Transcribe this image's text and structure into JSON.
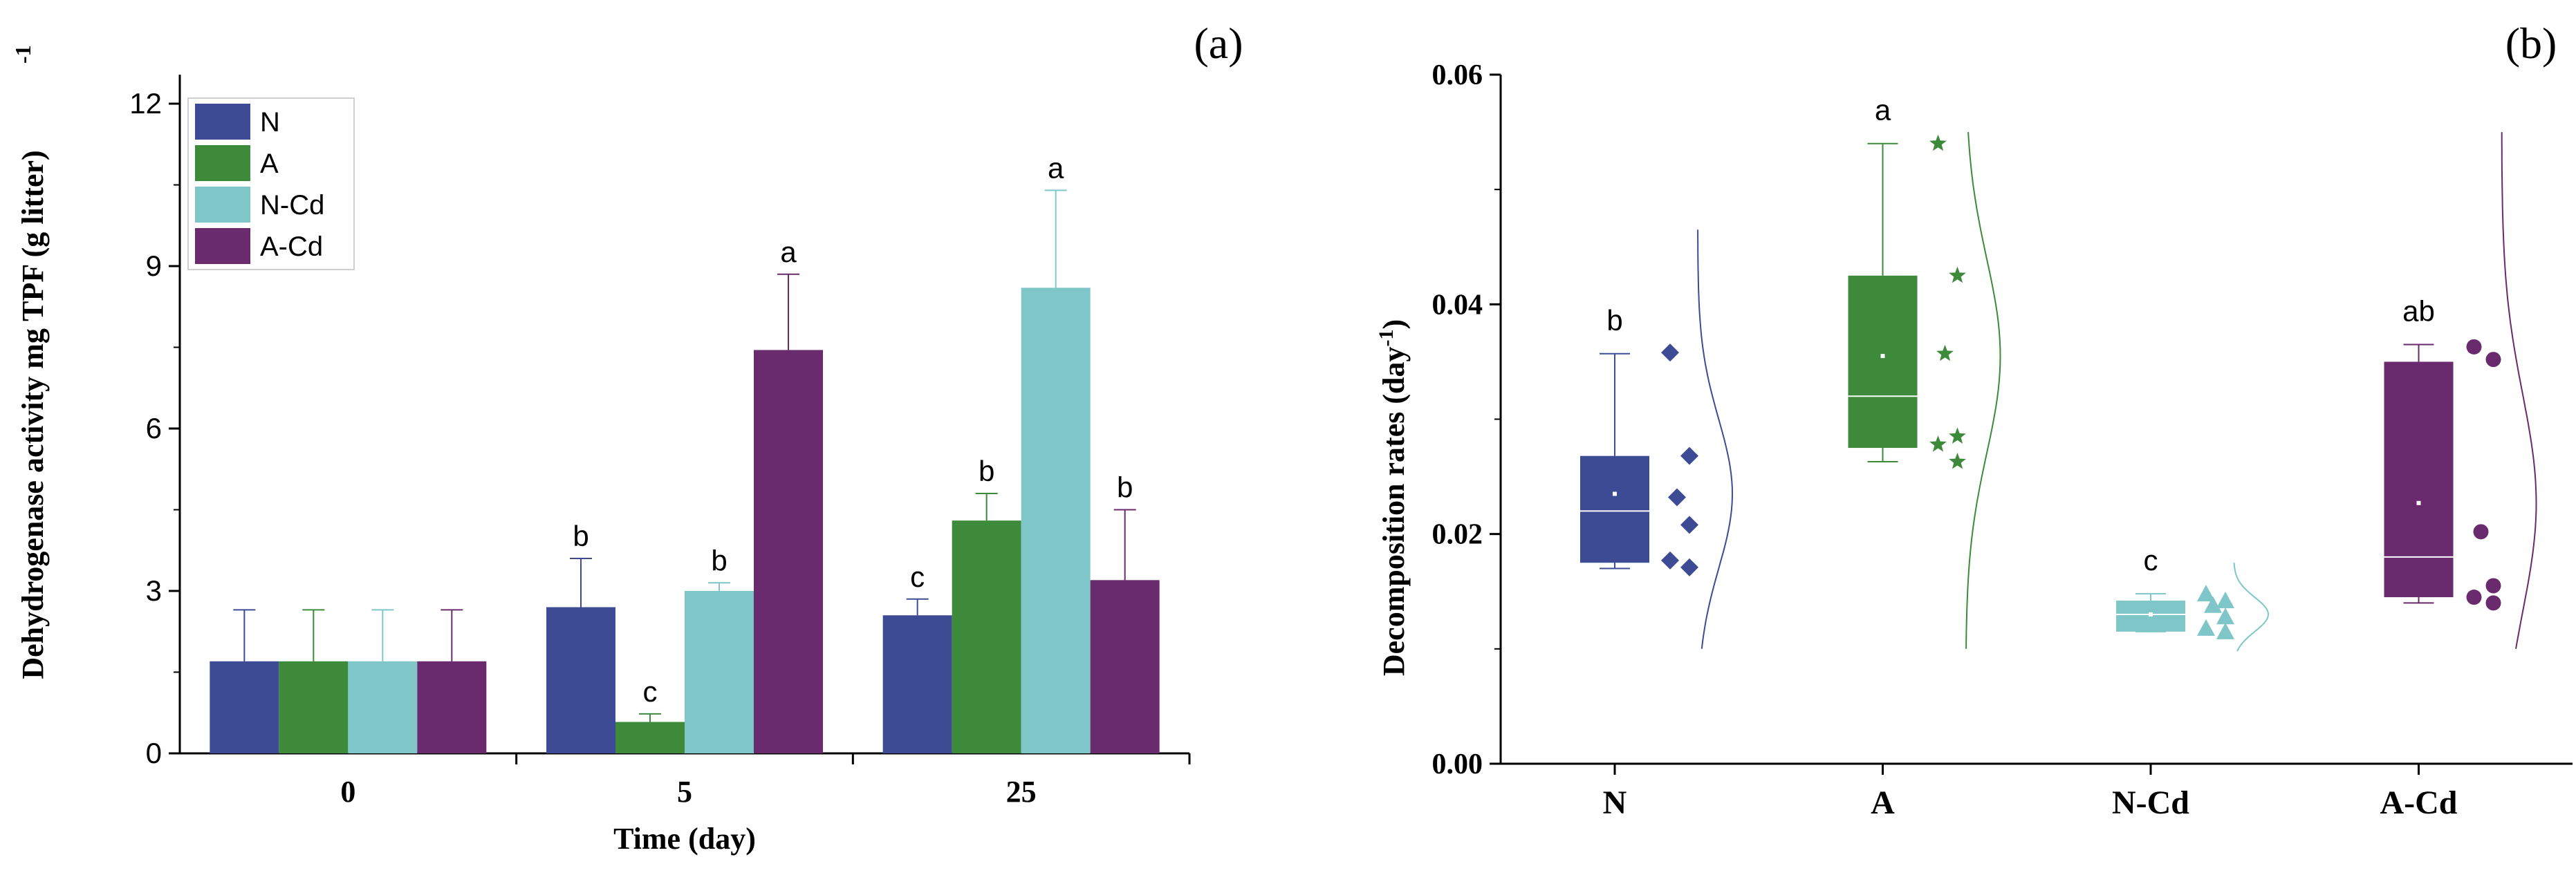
{
  "chart_data": [
    {
      "panel": "(a)",
      "type": "bar",
      "xlabel": "Time (day)",
      "ylabel": "Dehydrogenase activity mg TPF  (g litter)",
      "ylabel_sup": "-1",
      "categories": [
        "0",
        "5",
        "25"
      ],
      "yticks": [
        "0",
        "3",
        "6",
        "9",
        "12"
      ],
      "ylim": [
        0,
        12
      ],
      "legend_position": "top-left",
      "series": [
        {
          "name": "N",
          "color": "#3d4b94",
          "values": [
            1.7,
            2.7,
            2.55
          ],
          "errors": [
            0.95,
            0.9,
            0.3
          ],
          "labels": [
            "",
            "b",
            "c"
          ]
        },
        {
          "name": "A",
          "color": "#3d8a3a",
          "values": [
            1.7,
            0.58,
            4.3
          ],
          "errors": [
            0.95,
            0.15,
            0.5
          ],
          "labels": [
            "",
            "c",
            "b"
          ]
        },
        {
          "name": "N-Cd",
          "color": "#7ec6c8",
          "values": [
            1.7,
            3.0,
            8.6
          ],
          "errors": [
            0.95,
            0.15,
            1.8
          ],
          "labels": [
            "",
            "b",
            "a"
          ]
        },
        {
          "name": "A-Cd",
          "color": "#6a2a6e",
          "values": [
            1.7,
            7.45,
            3.2
          ],
          "errors": [
            0.95,
            1.4,
            1.3
          ],
          "labels": [
            "",
            "a",
            "b"
          ]
        }
      ]
    },
    {
      "panel": "(b)",
      "type": "box",
      "xlabel": "",
      "ylabel": "Decomposition rates  (day",
      "ylabel_sup": "-1",
      "ylabel_close": ")",
      "yticks": [
        "0.00",
        "0.02",
        "0.04",
        "0.06"
      ],
      "ylim": [
        0,
        0.06
      ],
      "groups": [
        {
          "name": "N",
          "color": "#3d4b94",
          "marker": "diamond",
          "min": 0.017,
          "q1": 0.0175,
          "median": 0.022,
          "q3": 0.0268,
          "max": 0.0357,
          "mean": 0.0235,
          "label": "b",
          "points": [
            0.0358,
            0.0268,
            0.0232,
            0.0208,
            0.0177,
            0.0171
          ],
          "dist_mean": 0.0235,
          "dist_sd": 0.0065,
          "dist_range": [
            0.01,
            0.0465
          ]
        },
        {
          "name": "A",
          "color": "#3d8a3a",
          "marker": "star",
          "min": 0.0263,
          "q1": 0.0275,
          "median": 0.032,
          "q3": 0.0425,
          "max": 0.054,
          "mean": 0.0355,
          "label": "a",
          "points": [
            0.054,
            0.0425,
            0.0357,
            0.0285,
            0.0278,
            0.0263
          ],
          "dist_mean": 0.0355,
          "dist_sd": 0.0085,
          "dist_range": [
            0.01,
            0.055
          ]
        },
        {
          "name": "N-Cd",
          "color": "#7ec6c8",
          "marker": "triangle",
          "min": 0.0115,
          "q1": 0.0115,
          "median": 0.013,
          "q3": 0.0142,
          "max": 0.0148,
          "mean": 0.013,
          "label": "c",
          "points": [
            0.0148,
            0.0142,
            0.0138,
            0.0128,
            0.0118,
            0.0115
          ],
          "dist_mean": 0.013,
          "dist_sd": 0.0015,
          "dist_range": [
            0.0098,
            0.0175
          ]
        },
        {
          "name": "A-Cd",
          "color": "#6a2a6e",
          "marker": "circle",
          "min": 0.014,
          "q1": 0.0145,
          "median": 0.018,
          "q3": 0.035,
          "max": 0.0365,
          "mean": 0.0227,
          "label": "ab",
          "points": [
            0.0363,
            0.0352,
            0.0202,
            0.0155,
            0.0145,
            0.014
          ],
          "dist_mean": 0.0227,
          "dist_sd": 0.0095,
          "dist_range": [
            0.01,
            0.055
          ]
        }
      ]
    }
  ]
}
